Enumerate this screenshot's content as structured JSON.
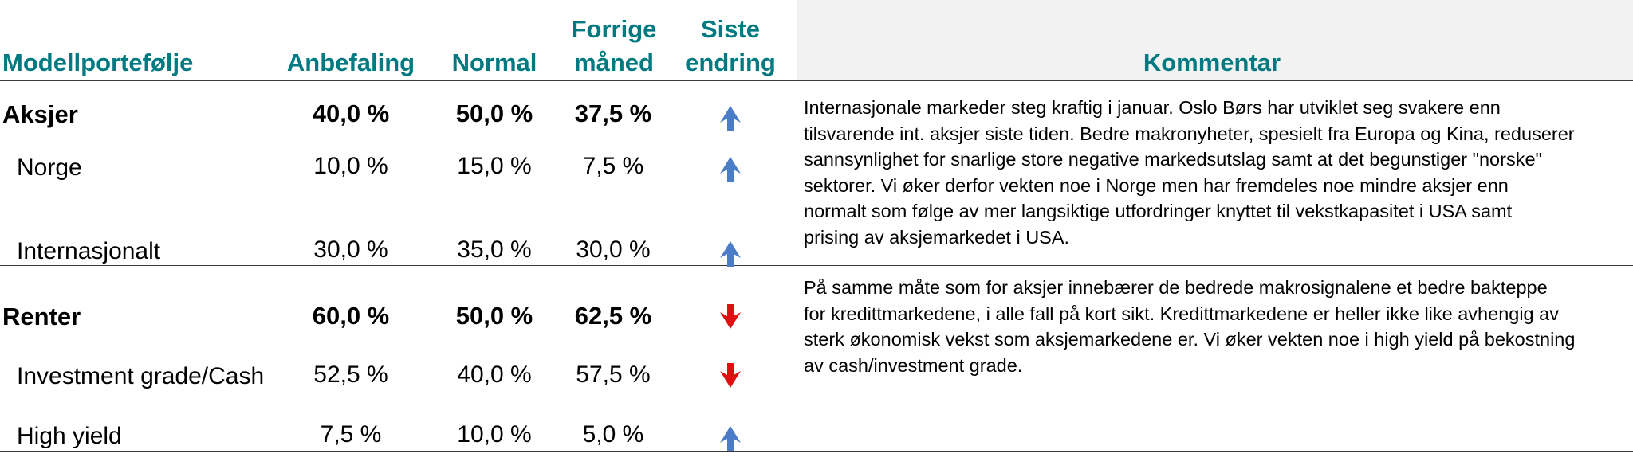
{
  "headers": {
    "portfolio": "Modellportefølje",
    "recommendation": "Anbefaling",
    "normal": "Normal",
    "previous_line1": "Forrige",
    "previous_line2": "måned",
    "last_change_line1": "Siste",
    "last_change_line2": "endring",
    "comment": "Kommentar"
  },
  "rows": [
    {
      "label": "Aksjer",
      "recommendation": "40,0 %",
      "normal": "50,0 %",
      "previous": "37,5 %",
      "change": "up"
    },
    {
      "label": "Norge",
      "recommendation": "10,0 %",
      "normal": "15,0 %",
      "previous": "7,5 %",
      "change": "up"
    },
    {
      "label": "Internasjonalt",
      "recommendation": "30,0 %",
      "normal": "35,0 %",
      "previous": "30,0 %",
      "change": "up"
    },
    {
      "label": "Renter",
      "recommendation": "60,0 %",
      "normal": "50,0 %",
      "previous": "62,5 %",
      "change": "down"
    },
    {
      "label": "Investment grade/Cash",
      "recommendation": "52,5 %",
      "normal": "40,0 %",
      "previous": "57,5 %",
      "change": "down"
    },
    {
      "label": "High yield",
      "recommendation": "7,5 %",
      "normal": "10,0 %",
      "previous": "5,0 %",
      "change": "up"
    }
  ],
  "comments": {
    "equities": [
      "Internasjonale markeder steg kraftig i januar. Oslo Børs har utviklet seg svakere enn",
      "tilsvarende int. aksjer siste tiden. Bedre makronyheter, spesielt fra Europa og Kina, reduserer",
      "sannsynlighet for snarlige store negative markedsutslag samt at det begunstiger \"norske\"",
      "sektorer. Vi øker derfor vekten noe i Norge men har fremdeles noe mindre aksjer enn",
      "normalt som følge av mer langsiktige utfordringer knyttet til vekstkapasitet i USA samt",
      "prising av aksjemarkedet i USA."
    ],
    "fixed_income": [
      "På samme måte som for aksjer innebærer de bedrede makrosignalene et bedre bakteppe",
      "for kredittmarkedene, i alle fall på kort sikt. Kredittmarkedene er heller ikke like avhengig av",
      "sterk økonomisk vekst som aksjemarkedene er. Vi øker vekten noe i high yield på bekostning",
      "av cash/investment grade."
    ]
  },
  "colors": {
    "header_text": "#007a80",
    "arrow_up": "#4a7cc7",
    "arrow_down": "#e01010",
    "rule": "#3a3a3a"
  }
}
